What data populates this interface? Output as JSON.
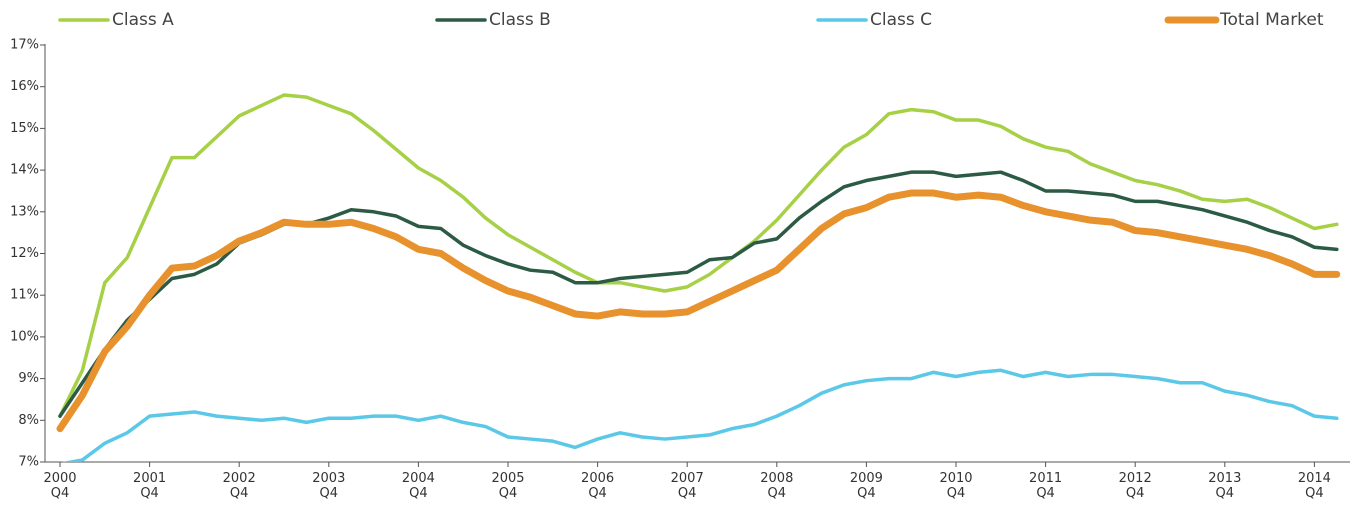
{
  "chart_data": {
    "type": "line",
    "categories": [
      "2000\nQ4",
      null,
      null,
      null,
      "2001\nQ4",
      null,
      null,
      null,
      "2002\nQ4",
      null,
      null,
      null,
      "2003\nQ4",
      null,
      null,
      null,
      "2004\nQ4",
      null,
      null,
      null,
      "2005\nQ4",
      null,
      null,
      null,
      "2006\nQ4",
      null,
      null,
      null,
      "2007\nQ4",
      null,
      null,
      null,
      "2008\nQ4",
      null,
      null,
      null,
      "2009\nQ4",
      null,
      null,
      null,
      "2010\nQ4",
      null,
      null,
      null,
      "2011\nQ4",
      null,
      null,
      null,
      "2012\nQ4",
      null,
      null,
      null,
      "2013\nQ4",
      null,
      null,
      null,
      "2014\nQ4",
      null
    ],
    "series": [
      {
        "name": "Class A",
        "color": "#a6d045",
        "line_width": 3.5,
        "values": [
          8.1,
          9.2,
          11.3,
          11.9,
          13.1,
          14.3,
          14.3,
          14.8,
          15.3,
          15.55,
          15.8,
          15.75,
          15.55,
          15.35,
          14.95,
          14.5,
          14.05,
          13.75,
          13.35,
          12.85,
          12.45,
          12.15,
          11.85,
          11.55,
          11.3,
          11.3,
          11.2,
          11.1,
          11.2,
          11.5,
          11.9,
          12.3,
          12.8,
          13.4,
          14.0,
          14.55,
          14.85,
          15.35,
          15.45,
          15.4,
          15.2,
          15.2,
          15.05,
          14.75,
          14.55,
          14.45,
          14.15,
          13.95,
          13.75,
          13.65,
          13.5,
          13.3,
          13.25,
          13.3,
          13.1,
          12.85,
          12.6,
          12.7
        ]
      },
      {
        "name": "Class B",
        "color": "#2b5a45",
        "line_width": 3.5,
        "values": [
          8.1,
          8.9,
          9.7,
          10.4,
          10.9,
          11.4,
          11.5,
          11.75,
          12.25,
          12.45,
          12.7,
          12.7,
          12.85,
          13.05,
          13.0,
          12.9,
          12.65,
          12.6,
          12.2,
          11.95,
          11.75,
          11.6,
          11.55,
          11.3,
          11.3,
          11.4,
          11.45,
          11.5,
          11.55,
          11.85,
          11.9,
          12.25,
          12.35,
          12.85,
          13.25,
          13.6,
          13.75,
          13.85,
          13.95,
          13.95,
          13.85,
          13.9,
          13.95,
          13.75,
          13.5,
          13.5,
          13.45,
          13.4,
          13.25,
          13.25,
          13.15,
          13.05,
          12.9,
          12.75,
          12.55,
          12.4,
          12.15,
          12.1
        ]
      },
      {
        "name": "Class C",
        "color": "#5bc8e8",
        "line_width": 3.5,
        "values": [
          6.95,
          7.05,
          7.45,
          7.7,
          8.1,
          8.15,
          8.2,
          8.1,
          8.05,
          8.0,
          8.05,
          7.95,
          8.05,
          8.05,
          8.1,
          8.1,
          8.0,
          8.1,
          7.95,
          7.85,
          7.6,
          7.55,
          7.5,
          7.35,
          7.55,
          7.7,
          7.6,
          7.55,
          7.6,
          7.65,
          7.8,
          7.9,
          8.1,
          8.35,
          8.65,
          8.85,
          8.95,
          9.0,
          9.0,
          9.15,
          9.05,
          9.15,
          9.2,
          9.05,
          9.15,
          9.05,
          9.1,
          9.1,
          9.05,
          9.0,
          8.9,
          8.9,
          8.7,
          8.6,
          8.45,
          8.35,
          8.1,
          8.05
        ]
      },
      {
        "name": "Total Market",
        "color": "#e8922d",
        "line_width": 7,
        "values": [
          7.8,
          8.6,
          9.65,
          10.25,
          11.0,
          11.65,
          11.7,
          11.95,
          12.3,
          12.5,
          12.75,
          12.7,
          12.7,
          12.75,
          12.6,
          12.4,
          12.1,
          12.0,
          11.65,
          11.35,
          11.1,
          10.95,
          10.75,
          10.55,
          10.5,
          10.6,
          10.55,
          10.55,
          10.6,
          10.85,
          11.1,
          11.35,
          11.6,
          12.1,
          12.6,
          12.95,
          13.1,
          13.35,
          13.45,
          13.45,
          13.35,
          13.4,
          13.35,
          13.15,
          13.0,
          12.9,
          12.8,
          12.75,
          12.55,
          12.5,
          12.4,
          12.3,
          12.2,
          12.1,
          11.95,
          11.75,
          11.5,
          11.5
        ]
      }
    ],
    "ylim": [
      7,
      17
    ],
    "yticks": [
      {
        "value": 7,
        "label": "7%"
      },
      {
        "value": 8,
        "label": "8%"
      },
      {
        "value": 9,
        "label": "9%"
      },
      {
        "value": 10,
        "label": "10%"
      },
      {
        "value": 11,
        "label": "11%"
      },
      {
        "value": 12,
        "label": "12%"
      },
      {
        "value": 13,
        "label": "13%"
      },
      {
        "value": 14,
        "label": "14%"
      },
      {
        "value": 15,
        "label": "15%"
      },
      {
        "value": 16,
        "label": "16%"
      },
      {
        "value": 17,
        "label": "17%"
      }
    ],
    "grid": false,
    "legend": "top"
  }
}
